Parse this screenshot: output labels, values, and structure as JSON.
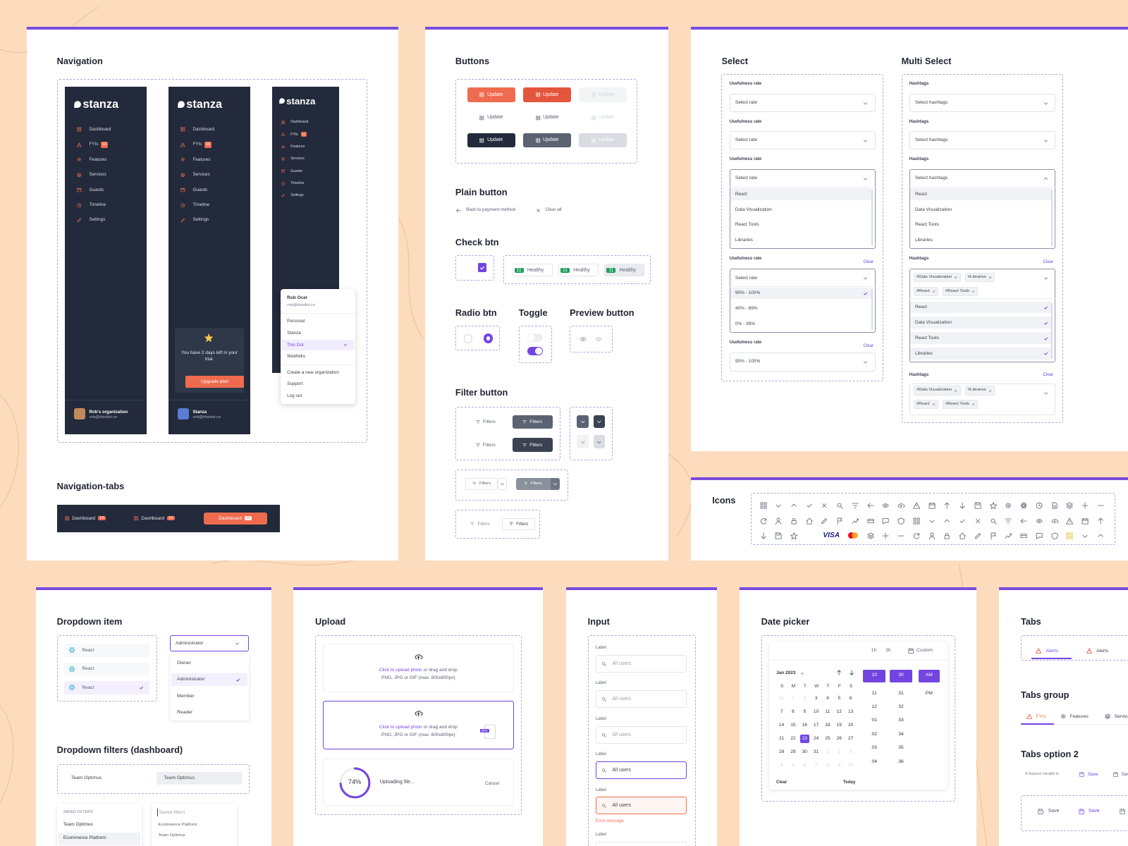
{
  "navigation": {
    "title": "Navigation",
    "brand": "stanza",
    "items": [
      "Dashboard",
      "FYIs",
      "Features",
      "Services",
      "Guards",
      "Timeline",
      "Settings"
    ],
    "badge": "10",
    "organization": {
      "name": "Rob's organization",
      "email": "rob@thisdot.co"
    },
    "workspace": {
      "name": "Stanza",
      "email": "rob@thisdot.co"
    },
    "trial": {
      "text": "You have 2 days left in your trial.",
      "button": "Upgrade plan"
    },
    "menu": {
      "name": "Rob Ocel",
      "email": "rob@thisdot.co",
      "organizations": [
        "Personal",
        "Stanza",
        "This Dot",
        "Webfolks"
      ],
      "selected": 2,
      "actions": [
        "Create a new organization",
        "Support",
        "Log out"
      ]
    }
  },
  "navigation_tabs": {
    "title": "Navigation-tabs",
    "tabs": [
      {
        "label": "Dashboard",
        "badge": "10"
      },
      {
        "label": "Dashboard",
        "badge": "10"
      },
      {
        "label": "Dashboard",
        "badge": "10"
      }
    ],
    "active": 2
  },
  "buttons": {
    "title": "Buttons",
    "label": "Update",
    "plain_title": "Plain button",
    "plain": [
      "Back to payment method",
      "Clear all"
    ],
    "check_title": "Check btn",
    "chips": [
      {
        "count": "11",
        "label": "Healthy"
      },
      {
        "count": "11",
        "label": "Healthy"
      },
      {
        "count": "11",
        "label": "Healthy"
      }
    ],
    "radio_title": "Radio btn",
    "toggle_title": "Toggle",
    "preview_title": "Preview button",
    "filter_title": "Filter button",
    "filter_label": "Filters"
  },
  "select": {
    "title": "Select",
    "label": "Usefulness rate",
    "placeholder": "Select rate",
    "options": [
      "React",
      "Data Visualization",
      "React Tools",
      "Libraries"
    ],
    "rates": [
      "90% - 100%",
      "40% - 89%",
      "0% - 39%"
    ],
    "selected": 0,
    "clear": "Clear"
  },
  "multi_select": {
    "title": "Multi Select",
    "label": "Hashtags",
    "placeholder": "Select hashtags",
    "options": [
      "React",
      "Data Visualization",
      "React Tools",
      "Libraries"
    ],
    "tags": [
      "#Data Visualization",
      "#Libraries",
      "#React",
      "#React Tools"
    ],
    "clear": "Clear"
  },
  "icons": {
    "title": "Icons",
    "card_brand": "VISA"
  },
  "dropdown": {
    "title": "Dropdown item",
    "items": [
      "React",
      "React",
      "React"
    ],
    "selected": 2,
    "role": "Administrator",
    "roles": [
      "Owner",
      "Administrator",
      "Member",
      "Reader"
    ],
    "filters_title": "Dropdown filters (dashboard)",
    "team": "Team Optimus",
    "saved_title": "SAVED FILTERS",
    "saved": [
      "Team Optimus",
      "Ecommerce Platform"
    ],
    "search_placeholder": "Saved filters",
    "search_results": [
      "Ecommerce Platform",
      "Team Optimus"
    ]
  },
  "upload": {
    "title": "Upload",
    "link": "Click to upload photo",
    "hint": " or drag and drop",
    "formats": "PNG, JPG or GIF (max. 800x800px)",
    "file_type": "JPG",
    "progress": {
      "value": 74,
      "label": "74%"
    },
    "status": "Uploading file...",
    "cancel": "Cancel"
  },
  "input": {
    "title": "Input",
    "label": "Label",
    "placeholder": "All users",
    "error": "Error message"
  },
  "date_picker": {
    "title": "Date picker",
    "ranges": [
      "1h",
      "3h",
      "Custom"
    ],
    "month": "Jan 2023",
    "weekdays": [
      "S",
      "M",
      "T",
      "W",
      "T",
      "F",
      "S"
    ],
    "leading_days": [
      "31",
      "1",
      "2"
    ],
    "days": [
      "3",
      "4",
      "5",
      "6",
      "7",
      "8",
      "9",
      "10",
      "11",
      "12",
      "13",
      "14",
      "15",
      "16",
      "17",
      "18",
      "19",
      "20",
      "21",
      "22",
      "23",
      "24",
      "25",
      "26",
      "27",
      "28",
      "29",
      "30",
      "31"
    ],
    "trailing_days": [
      "1",
      "2",
      "3",
      "4",
      "5",
      "6",
      "7",
      "8",
      "9",
      "10"
    ],
    "selected": "23",
    "hours": [
      "10",
      "11",
      "12",
      "01",
      "02",
      "03",
      "04"
    ],
    "minutes": [
      "30",
      "31",
      "32",
      "33",
      "34",
      "35",
      "36"
    ],
    "periods": [
      "AM",
      "PM"
    ],
    "clear": "Clear",
    "today": "Today"
  },
  "tabs": {
    "title": "Tabs",
    "tabs": [
      "Alerts",
      "Alerts"
    ],
    "group_title": "Tabs group",
    "group": [
      "FYIs",
      "Features",
      "Services"
    ],
    "option_title": "Tabs option 2",
    "condition": "If feature Health is",
    "save": "Save"
  }
}
